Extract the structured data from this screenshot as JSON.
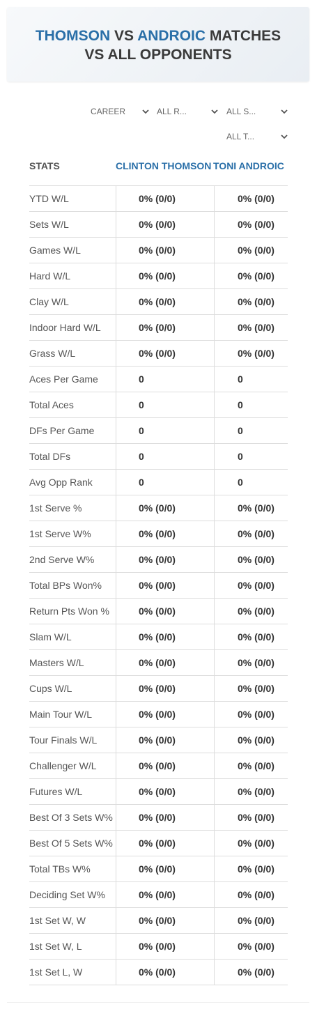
{
  "header": {
    "title": {
      "player1": "THOMSON",
      "vs": "VS",
      "player2": "ANDROIC",
      "line1_end": "MATCHES",
      "line2": "VS ALL OPPONENTS"
    }
  },
  "filters": [
    "CAREER",
    "ALL R...",
    "ALL S...",
    "ALL T..."
  ],
  "table": {
    "columns": [
      "STATS",
      "CLINTON THOMSON",
      "TONI ANDROIC"
    ],
    "rows": [
      [
        "YTD W/L",
        "0% (0/0)",
        "0% (0/0)"
      ],
      [
        "Sets W/L",
        "0% (0/0)",
        "0% (0/0)"
      ],
      [
        "Games W/L",
        "0% (0/0)",
        "0% (0/0)"
      ],
      [
        "Hard W/L",
        "0% (0/0)",
        "0% (0/0)"
      ],
      [
        "Clay W/L",
        "0% (0/0)",
        "0% (0/0)"
      ],
      [
        "Indoor Hard W/L",
        "0% (0/0)",
        "0% (0/0)"
      ],
      [
        "Grass W/L",
        "0% (0/0)",
        "0% (0/0)"
      ],
      [
        "Aces Per Game",
        "0",
        "0"
      ],
      [
        "Total Aces",
        "0",
        "0"
      ],
      [
        "DFs Per Game",
        "0",
        "0"
      ],
      [
        "Total DFs",
        "0",
        "0"
      ],
      [
        "Avg Opp Rank",
        "0",
        "0"
      ],
      [
        "1st Serve %",
        "0% (0/0)",
        "0% (0/0)"
      ],
      [
        "1st Serve W%",
        "0% (0/0)",
        "0% (0/0)"
      ],
      [
        "2nd Serve W%",
        "0% (0/0)",
        "0% (0/0)"
      ],
      [
        "Total BPs Won%",
        "0% (0/0)",
        "0% (0/0)"
      ],
      [
        "Return Pts Won %",
        "0% (0/0)",
        "0% (0/0)"
      ],
      [
        "Slam W/L",
        "0% (0/0)",
        "0% (0/0)"
      ],
      [
        "Masters W/L",
        "0% (0/0)",
        "0% (0/0)"
      ],
      [
        "Cups W/L",
        "0% (0/0)",
        "0% (0/0)"
      ],
      [
        "Main Tour W/L",
        "0% (0/0)",
        "0% (0/0)"
      ],
      [
        "Tour Finals W/L",
        "0% (0/0)",
        "0% (0/0)"
      ],
      [
        "Challenger W/L",
        "0% (0/0)",
        "0% (0/0)"
      ],
      [
        "Futures W/L",
        "0% (0/0)",
        "0% (0/0)"
      ],
      [
        "Best Of 3 Sets W%",
        "0% (0/0)",
        "0% (0/0)"
      ],
      [
        "Best Of 5 Sets W%",
        "0% (0/0)",
        "0% (0/0)"
      ],
      [
        "Total TBs W%",
        "0% (0/0)",
        "0% (0/0)"
      ],
      [
        "Deciding Set W%",
        "0% (0/0)",
        "0% (0/0)"
      ],
      [
        "1st Set W, W",
        "0% (0/0)",
        "0% (0/0)"
      ],
      [
        "1st Set W, L",
        "0% (0/0)",
        "0% (0/0)"
      ],
      [
        "1st Set L, W",
        "0% (0/0)",
        "0% (0/0)"
      ]
    ]
  }
}
